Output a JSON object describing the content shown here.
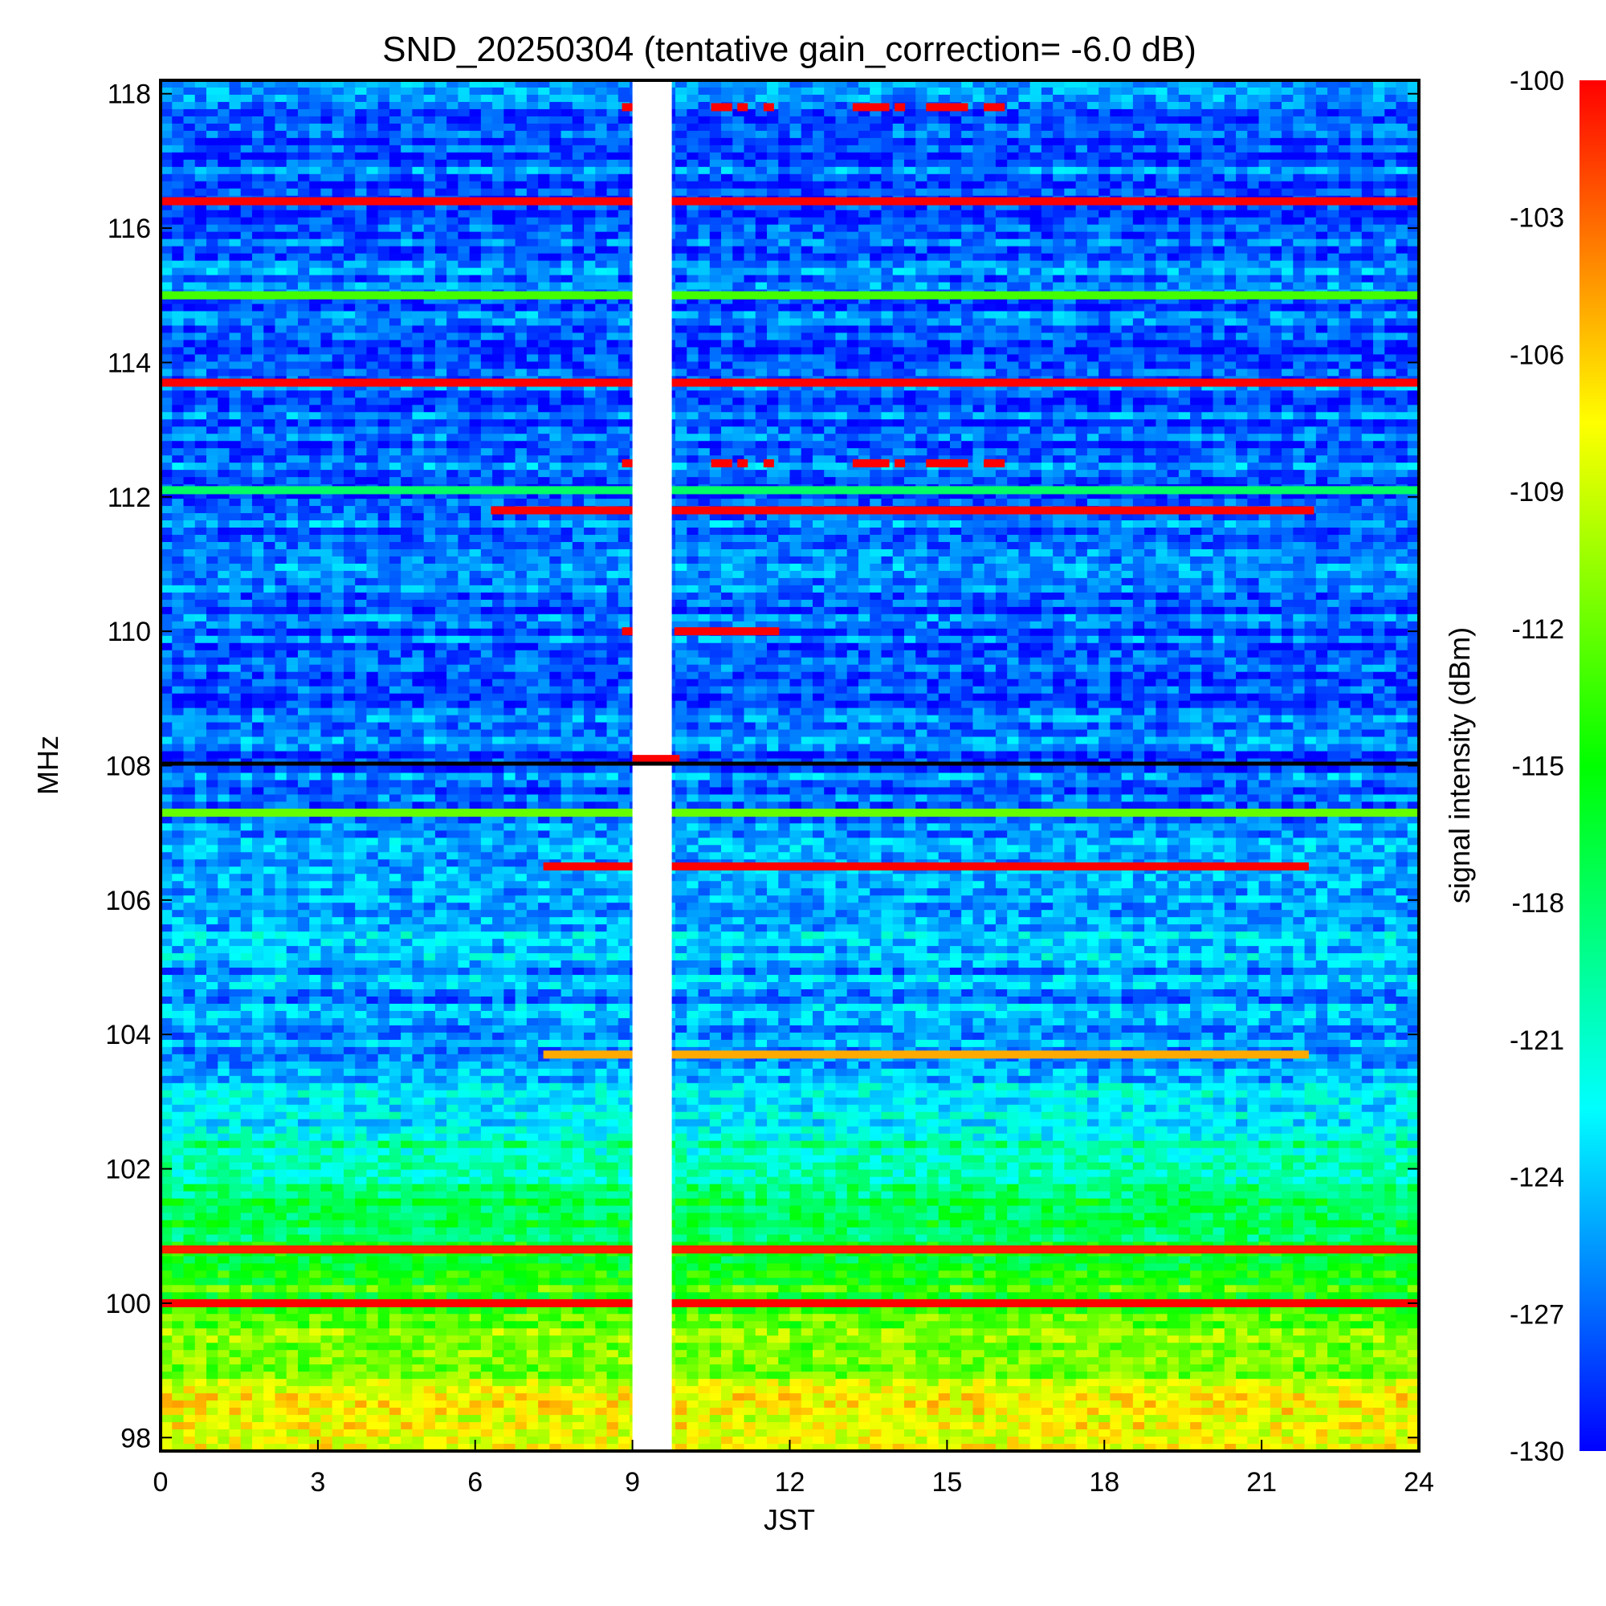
{
  "chart_data": {
    "type": "heatmap",
    "title": "SND_20250304 (tentative gain_correction= -6.0 dB)",
    "xlabel": "JST",
    "ylabel": "MHz",
    "colorbar_label": "signal intensity (dBm)",
    "xlim": [
      0,
      24
    ],
    "ylim": [
      97.8,
      118.2
    ],
    "zlim": [
      -130,
      -100
    ],
    "x_ticks": [
      "0",
      "3",
      "6",
      "9",
      "12",
      "15",
      "18",
      "21",
      "24"
    ],
    "x_tick_values": [
      0,
      3,
      6,
      9,
      12,
      15,
      18,
      21,
      24
    ],
    "y_ticks": [
      "98",
      "100",
      "102",
      "104",
      "106",
      "108",
      "110",
      "112",
      "114",
      "116",
      "118"
    ],
    "y_tick_values": [
      98,
      100,
      102,
      104,
      106,
      108,
      110,
      112,
      114,
      116,
      118
    ],
    "colorbar_ticks": [
      "-100",
      "-103",
      "-106",
      "-109",
      "-112",
      "-115",
      "-118",
      "-121",
      "-124",
      "-127",
      "-130"
    ],
    "colorbar_tick_values": [
      -100,
      -103,
      -106,
      -109,
      -112,
      -115,
      -118,
      -121,
      -124,
      -127,
      -130
    ],
    "data_gap_jst": [
      9.0,
      9.75
    ],
    "colormap": [
      "#0000ff",
      "#0080ff",
      "#00ffff",
      "#00ff80",
      "#00ff00",
      "#80ff00",
      "#ffff00",
      "#ff8000",
      "#ff0000"
    ],
    "baseline_profile": [
      {
        "mhz": 98.0,
        "dbm": -107
      },
      {
        "mhz": 99.0,
        "dbm": -110
      },
      {
        "mhz": 100.0,
        "dbm": -113
      },
      {
        "mhz": 101.0,
        "dbm": -117
      },
      {
        "mhz": 102.0,
        "dbm": -119
      },
      {
        "mhz": 103.0,
        "dbm": -123
      },
      {
        "mhz": 104.0,
        "dbm": -126
      },
      {
        "mhz": 105.0,
        "dbm": -125
      },
      {
        "mhz": 106.0,
        "dbm": -124
      },
      {
        "mhz": 107.0,
        "dbm": -126
      },
      {
        "mhz": 108.0,
        "dbm": -127
      },
      {
        "mhz": 112.0,
        "dbm": -127
      },
      {
        "mhz": 118.0,
        "dbm": -127
      }
    ],
    "strong_signals": [
      {
        "mhz": 116.4,
        "start_jst": 0,
        "end_jst": 24,
        "dbm": -100
      },
      {
        "mhz": 115.0,
        "start_jst": 0,
        "end_jst": 24,
        "dbm": -113
      },
      {
        "mhz": 113.7,
        "start_jst": 0,
        "end_jst": 24,
        "dbm": -100
      },
      {
        "mhz": 112.1,
        "start_jst": 0,
        "end_jst": 24,
        "dbm": -118
      },
      {
        "mhz": 111.8,
        "start_jst": 6.3,
        "end_jst": 22.0,
        "dbm": -100
      },
      {
        "mhz": 107.3,
        "start_jst": 0,
        "end_jst": 24,
        "dbm": -112
      },
      {
        "mhz": 106.5,
        "start_jst": 7.3,
        "end_jst": 21.9,
        "dbm": -100
      },
      {
        "mhz": 103.7,
        "start_jst": 7.3,
        "end_jst": 21.9,
        "dbm": -105
      },
      {
        "mhz": 100.8,
        "start_jst": 0,
        "end_jst": 24,
        "dbm": -101
      },
      {
        "mhz": 100.0,
        "start_jst": 0,
        "end_jst": 24,
        "dbm": -100
      }
    ],
    "intermittent_signals": [
      {
        "mhz": 117.8,
        "segments": [
          [
            8.8,
            9.0
          ],
          [
            10.5,
            10.9
          ],
          [
            11.0,
            11.2
          ],
          [
            11.5,
            11.7
          ],
          [
            13.2,
            13.9
          ],
          [
            14.0,
            14.2
          ],
          [
            14.6,
            15.4
          ],
          [
            15.7,
            16.1
          ]
        ],
        "dbm": -100
      },
      {
        "mhz": 112.5,
        "segments": [
          [
            8.8,
            9.0
          ],
          [
            10.5,
            10.9
          ],
          [
            11.0,
            11.2
          ],
          [
            11.5,
            11.7
          ],
          [
            13.2,
            13.9
          ],
          [
            14.0,
            14.2
          ],
          [
            14.6,
            15.4
          ],
          [
            15.7,
            16.1
          ]
        ],
        "dbm": -100
      },
      {
        "mhz": 110.0,
        "segments": [
          [
            8.8,
            9.0
          ],
          [
            9.8,
            11.8
          ]
        ],
        "dbm": -100
      },
      {
        "mhz": 108.1,
        "segments": [
          [
            9.0,
            9.9
          ]
        ],
        "dbm": -100
      }
    ]
  }
}
